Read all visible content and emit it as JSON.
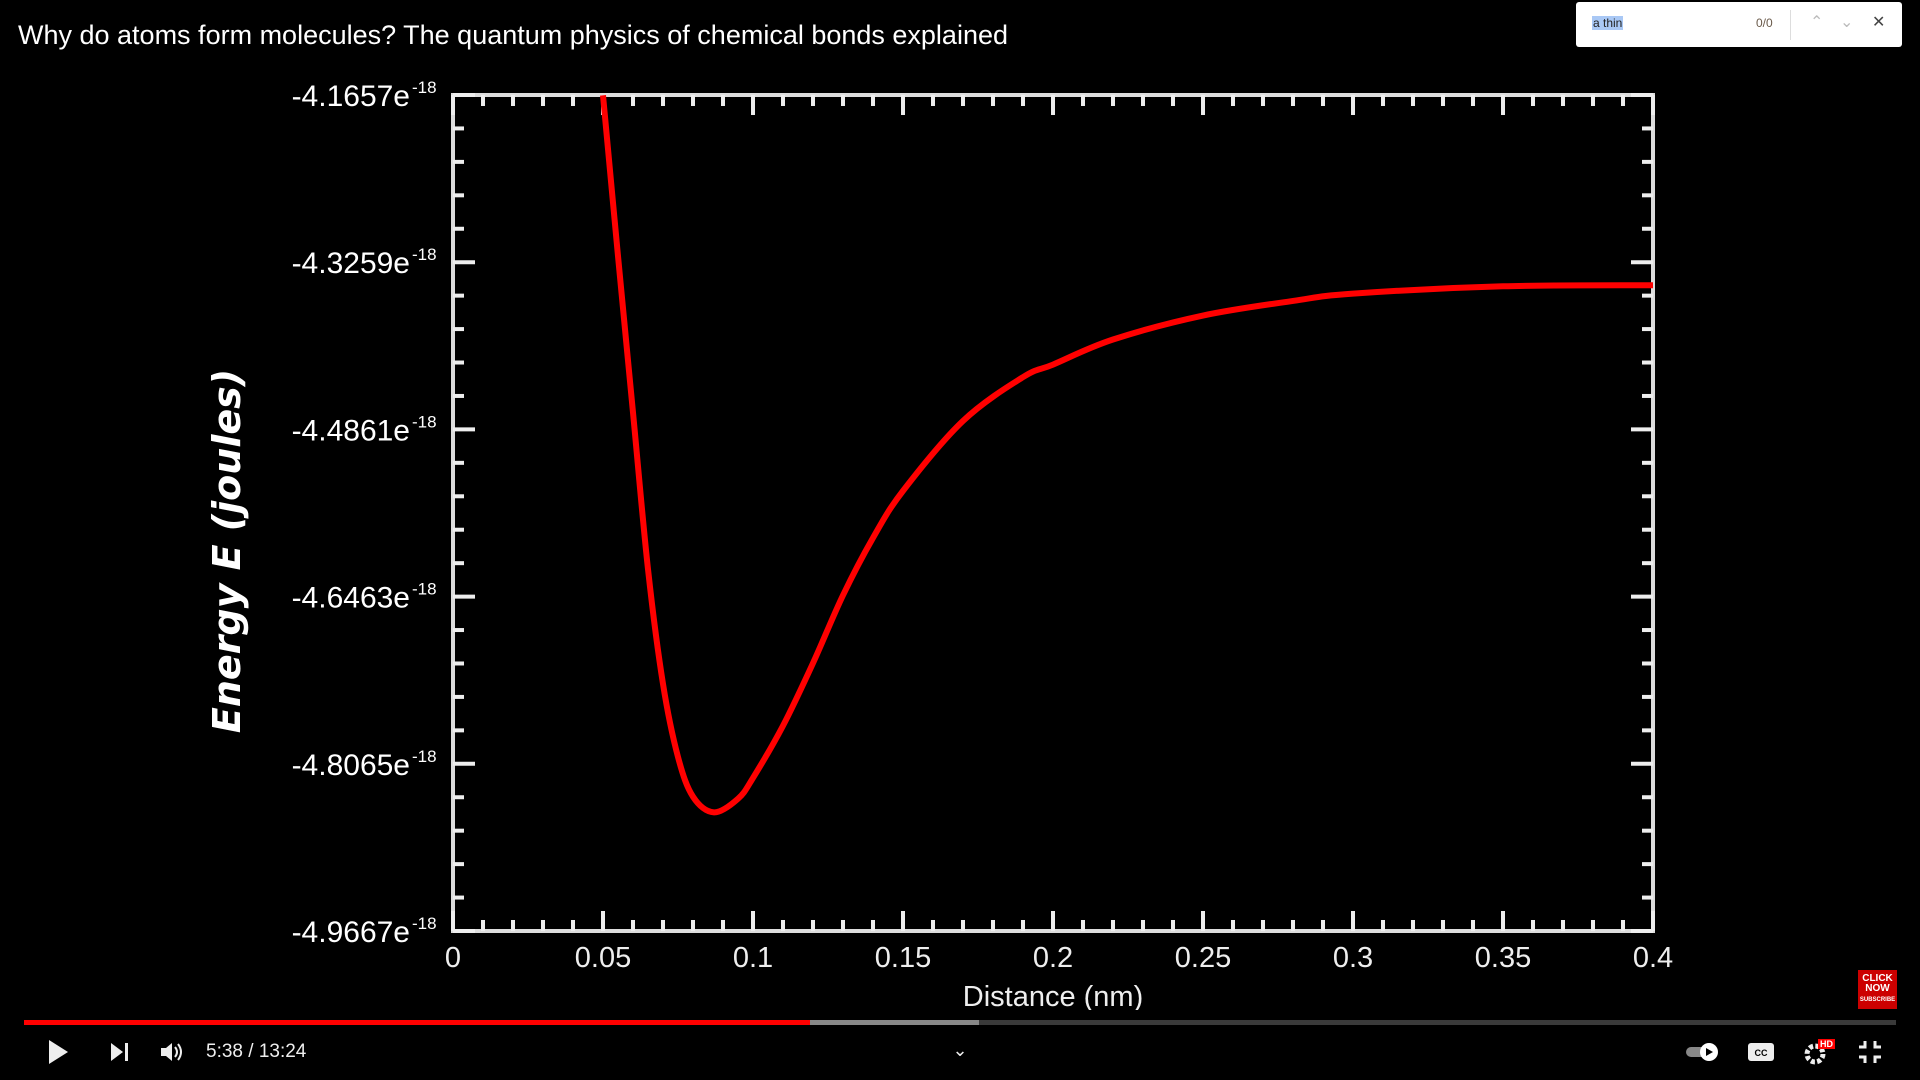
{
  "video": {
    "title": "Why do atoms form molecules? The quantum physics of chemical bonds explained",
    "current_time": "5:38",
    "duration": "13:24",
    "time_display": "5:38 / 13:24",
    "played_fraction": 0.42,
    "buffered_fraction": 0.51,
    "accent_color": "#ff0000",
    "hd_badge": "HD",
    "branding": "CLICK NOW SUBSCRIBE"
  },
  "find_bar": {
    "query": "a thin",
    "count": "0/0",
    "icons": [
      "chevron-up-icon",
      "chevron-down-icon",
      "close-icon"
    ]
  },
  "controls": {
    "icons": [
      "play-icon",
      "next-icon",
      "volume-icon",
      "chevron-down-icon",
      "autoplay-toggle-icon",
      "captions-icon",
      "settings-icon",
      "exit-fullscreen-icon"
    ]
  },
  "chart_data": {
    "type": "line",
    "xlabel": "Distance (nm)",
    "ylabel": "Energy E (joules)",
    "xlim": [
      0,
      0.4
    ],
    "ylim": [
      -4.9667e-18,
      -4.1657e-18
    ],
    "x_ticks": [
      "0",
      "0.05",
      "0.1",
      "0.15",
      "0.2",
      "0.25",
      "0.3",
      "0.35",
      "0.4"
    ],
    "y_ticks": [
      {
        "mantissa": "-4.1657e",
        "exp": "-18"
      },
      {
        "mantissa": "-4.3259e",
        "exp": "-18"
      },
      {
        "mantissa": "-4.4861e",
        "exp": "-18"
      },
      {
        "mantissa": "-4.6463e",
        "exp": "-18"
      },
      {
        "mantissa": "-4.8065e",
        "exp": "-18"
      },
      {
        "mantissa": "-4.9667e",
        "exp": "-18"
      }
    ],
    "grid": false,
    "line_color": "#ff0000",
    "x": [
      0.05,
      0.055,
      0.06,
      0.065,
      0.07,
      0.075,
      0.08,
      0.087,
      0.095,
      0.1,
      0.11,
      0.12,
      0.13,
      0.14,
      0.15,
      0.17,
      0.19,
      0.2,
      0.22,
      0.25,
      0.28,
      0.3,
      0.35,
      0.4
    ],
    "y": [
      -4.166e-18,
      -4.32e-18,
      -4.47e-18,
      -4.62e-18,
      -4.73e-18,
      -4.8e-18,
      -4.838e-18,
      -4.853e-18,
      -4.84e-18,
      -4.82e-18,
      -4.77e-18,
      -4.71e-18,
      -4.645e-18,
      -4.59e-18,
      -4.545e-18,
      -4.478e-18,
      -4.436e-18,
      -4.424e-18,
      -4.4e-18,
      -4.377e-18,
      -4.363e-18,
      -4.356e-18,
      -4.349e-18,
      -4.348e-18
    ]
  }
}
